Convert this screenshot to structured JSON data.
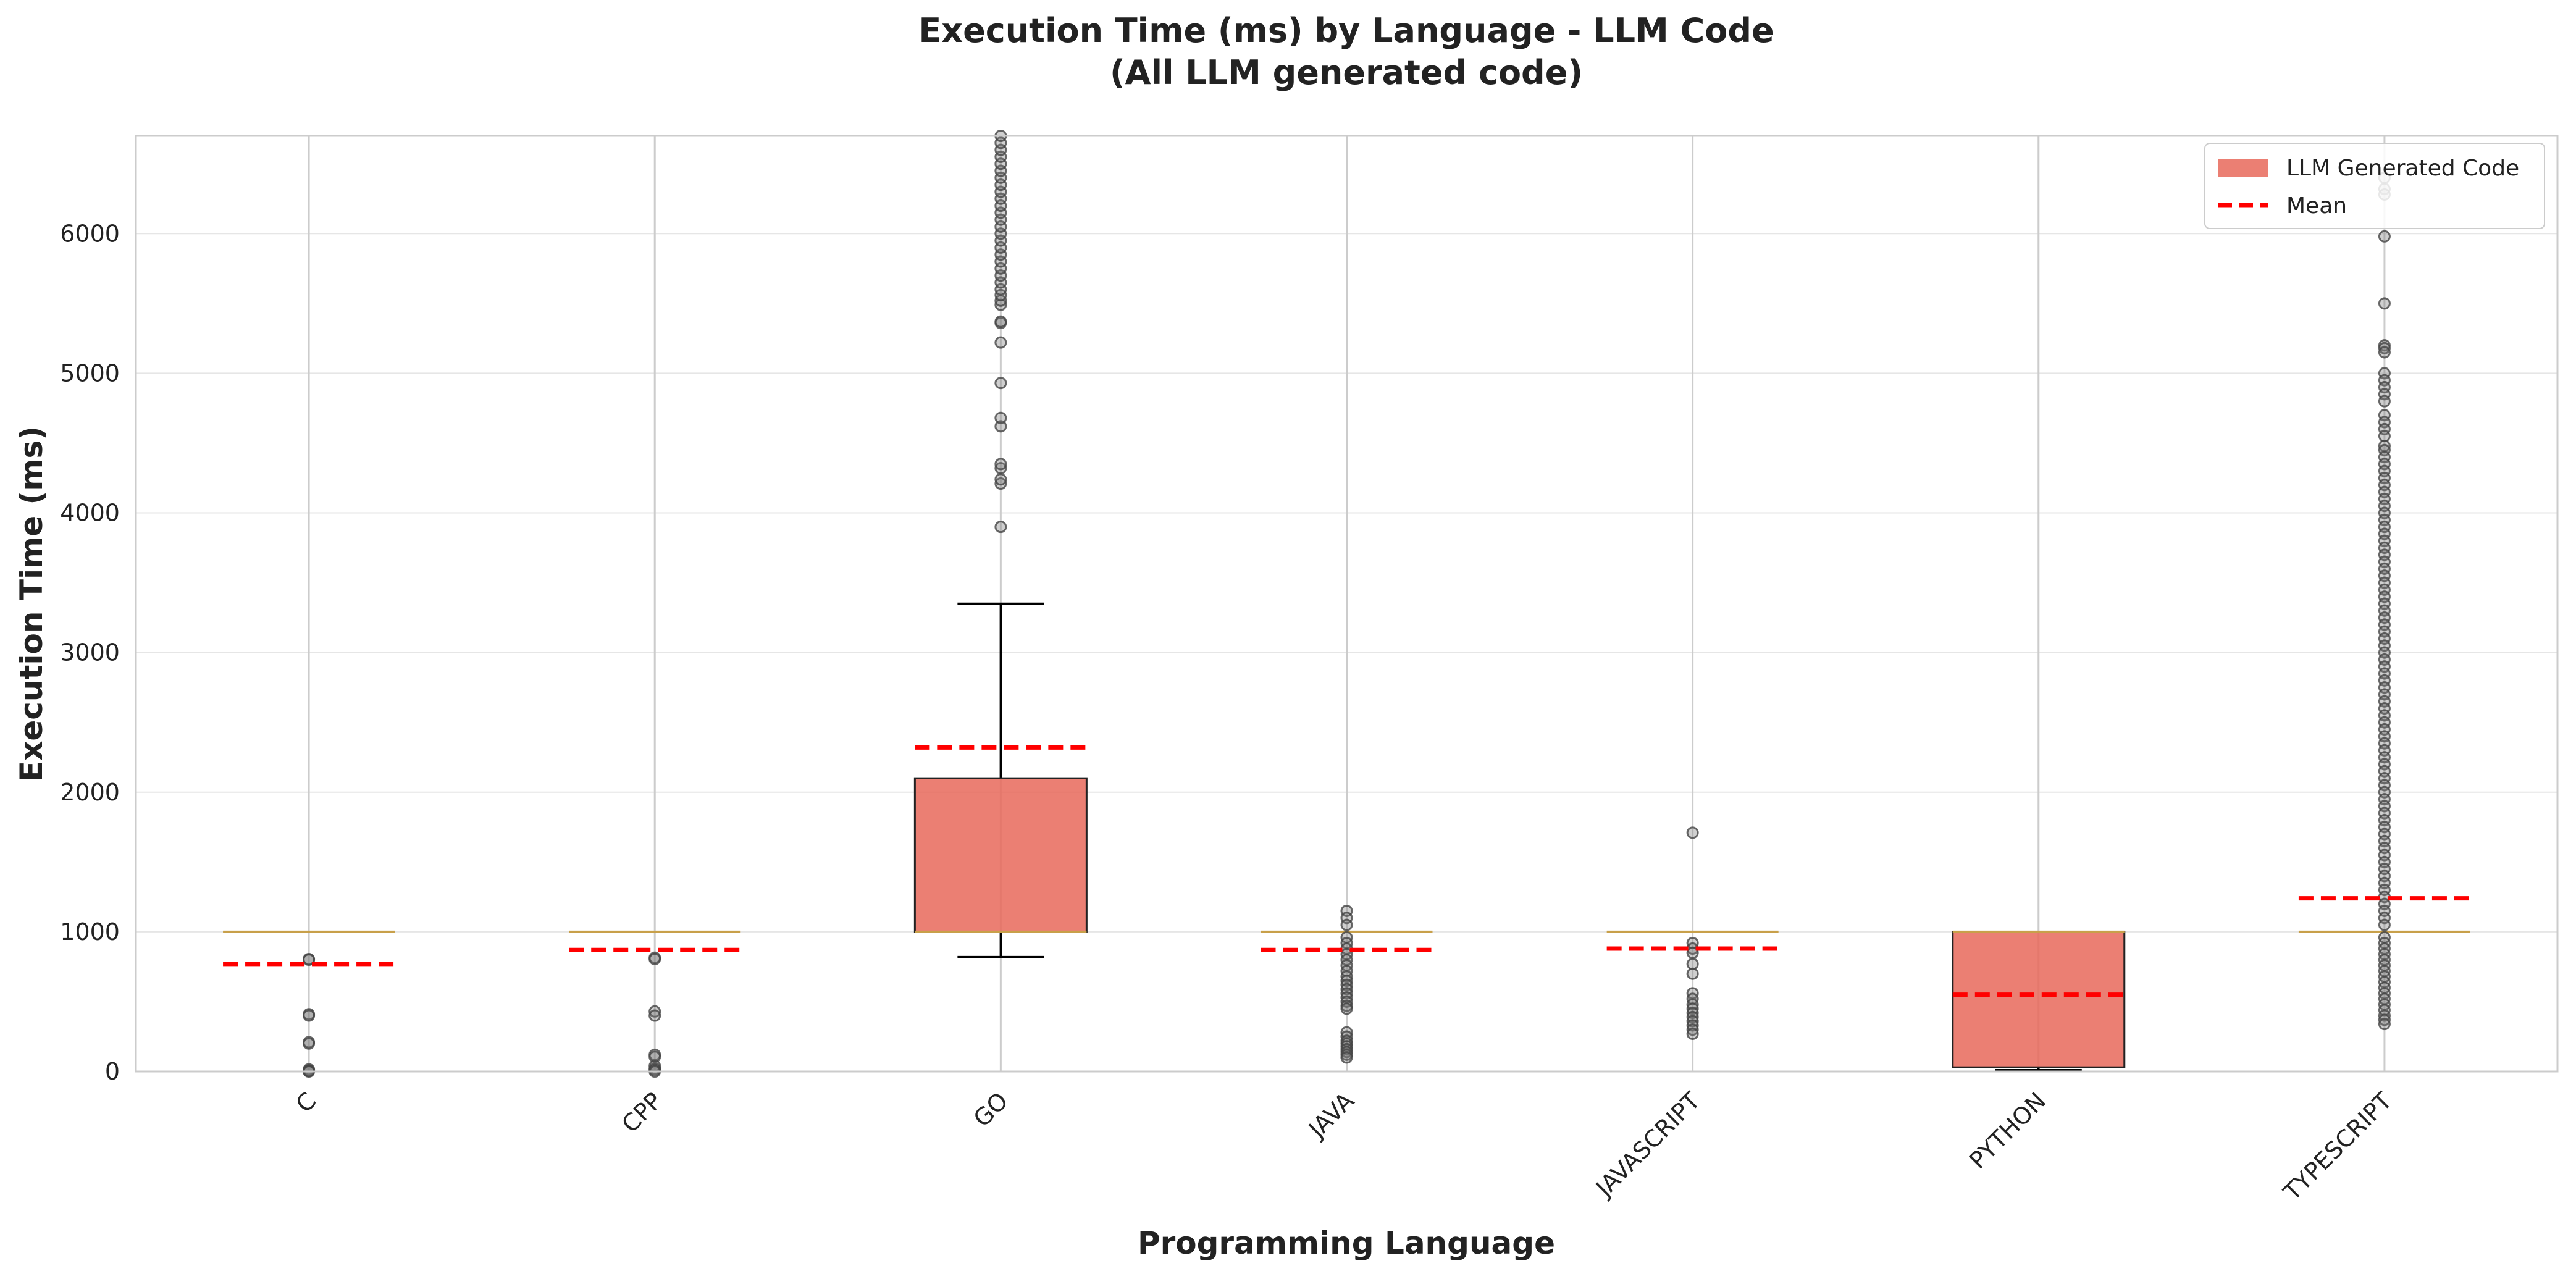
{
  "chart_data": {
    "type": "box",
    "title": "Execution Time (ms) by Language - LLM Code",
    "subtitle": "(All LLM generated code)",
    "xlabel": "Programming Language",
    "ylabel": "Execution Time (ms)",
    "ylim": [
      0,
      6700
    ],
    "yticks": [
      0,
      1000,
      2000,
      3000,
      4000,
      5000,
      6000
    ],
    "grid": true,
    "legend_position": "top-right",
    "legend": [
      {
        "label": "LLM Generated Code",
        "kind": "patch",
        "color": "#e8685a"
      },
      {
        "label": "Mean",
        "kind": "dashed-line",
        "color": "#ff0000"
      }
    ],
    "colors": {
      "box_fill": "#e8685a",
      "median": "#c8a04a",
      "mean": "#ff0000",
      "grid": "#e6e6e6",
      "vgrid": "#cccccc",
      "outlier": "#444444"
    },
    "categories": [
      "C",
      "CPP",
      "GO",
      "JAVA",
      "JAVASCRIPT",
      "PYTHON",
      "TYPESCRIPT"
    ],
    "boxes": [
      {
        "label": "C",
        "q1": 1000,
        "median": 1000,
        "q3": 1000,
        "whisker_low": 1000,
        "whisker_high": 1000,
        "mean": 770,
        "outliers": [
          805,
          800,
          410,
          400,
          210,
          200,
          15,
          8,
          3,
          0
        ]
      },
      {
        "label": "CPP",
        "q1": 1000,
        "median": 1000,
        "q3": 1000,
        "whisker_low": 1000,
        "whisker_high": 1000,
        "mean": 870,
        "outliers": [
          815,
          805,
          430,
          400,
          120,
          105,
          40,
          20,
          10,
          0
        ]
      },
      {
        "label": "GO",
        "q1": 1000,
        "median": 1000,
        "q3": 2100,
        "whisker_low": 820,
        "whisker_high": 3350,
        "mean": 2320,
        "outliers": [
          3900,
          4210,
          4240,
          4320,
          4350,
          4620,
          4680,
          4930,
          5220,
          5360,
          5370,
          5490,
          5520,
          5560,
          5600,
          5650,
          5700,
          5750,
          5800,
          5850,
          5900,
          5950,
          6000,
          6050,
          6100,
          6150,
          6200,
          6250,
          6300,
          6350,
          6400,
          6450,
          6500,
          6550,
          6600,
          6650,
          6700
        ]
      },
      {
        "label": "JAVA",
        "q1": 1000,
        "median": 1000,
        "q3": 1000,
        "whisker_low": 1000,
        "whisker_high": 1000,
        "mean": 870,
        "outliers": [
          1150,
          1100,
          1050,
          960,
          920,
          880,
          840,
          800,
          760,
          720,
          680,
          650,
          620,
          590,
          560,
          530,
          500,
          470,
          450,
          280,
          250,
          220,
          200,
          180,
          160,
          140,
          120,
          100
        ]
      },
      {
        "label": "JAVASCRIPT",
        "q1": 1000,
        "median": 1000,
        "q3": 1000,
        "whisker_low": 1000,
        "whisker_high": 1000,
        "mean": 880,
        "outliers": [
          1710,
          920,
          880,
          850,
          770,
          700,
          560,
          520,
          480,
          450,
          420,
          390,
          360,
          330,
          300,
          270
        ]
      },
      {
        "label": "PYTHON",
        "q1": 30,
        "median": 1000,
        "q3": 1000,
        "whisker_low": 10,
        "whisker_high": 1000,
        "mean": 550,
        "outliers": []
      },
      {
        "label": "TYPESCRIPT",
        "q1": 1000,
        "median": 1000,
        "q3": 1000,
        "whisker_low": 1000,
        "whisker_high": 1000,
        "mean": 1240,
        "outliers": [
          6400,
          6320,
          6280,
          5980,
          5500,
          5200,
          5180,
          5150,
          5000,
          4950,
          4900,
          4850,
          4800,
          4700,
          4650,
          4600,
          4550,
          4480,
          4450,
          4400,
          4350,
          4300,
          4250,
          4200,
          4150,
          4100,
          4050,
          4000,
          3950,
          3900,
          3850,
          3800,
          3750,
          3700,
          3650,
          3600,
          3550,
          3500,
          3450,
          3400,
          3350,
          3300,
          3250,
          3200,
          3150,
          3100,
          3050,
          3000,
          2950,
          2900,
          2850,
          2800,
          2750,
          2700,
          2650,
          2600,
          2550,
          2500,
          2450,
          2400,
          2350,
          2300,
          2250,
          2200,
          2150,
          2100,
          2050,
          2000,
          1950,
          1900,
          1850,
          1800,
          1750,
          1700,
          1650,
          1600,
          1550,
          1500,
          1450,
          1400,
          1350,
          1300,
          1250,
          1200,
          1150,
          1100,
          1050,
          960,
          920,
          880,
          840,
          800,
          760,
          720,
          680,
          640,
          600,
          560,
          520,
          480,
          440,
          400,
          370,
          340
        ]
      }
    ]
  }
}
